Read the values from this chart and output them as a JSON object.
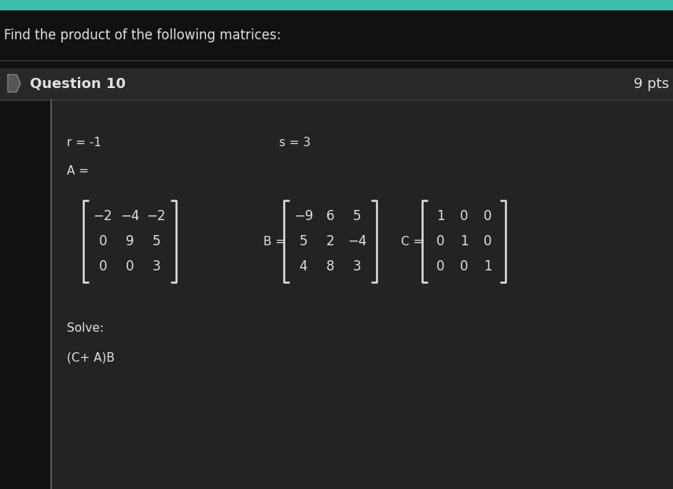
{
  "bg_color": "#111111",
  "top_bar_color": "#3dbfad",
  "header_bg": "#111111",
  "question_bar_bg": "#282828",
  "content_bg": "#1e1e1e",
  "content_inner_bg": "#232323",
  "text_color": "#e0e0e0",
  "title_text": "Find the product of the following matrices:",
  "question_label": "Question 10",
  "pts_label": "9 pts",
  "r_label": "r = -1",
  "s_label": "s = 3",
  "A_label": "A =",
  "B_label": "B =",
  "C_label": "C =",
  "solve_label": "Solve:",
  "expression_label": "(C+ A)B",
  "A_matrix": [
    [
      "−2",
      "−4",
      "−2"
    ],
    [
      "0",
      "9",
      "5"
    ],
    [
      "0",
      "0",
      "3"
    ]
  ],
  "B_matrix": [
    [
      "−9",
      "6",
      "5"
    ],
    [
      "5",
      "2",
      "−4"
    ],
    [
      "4",
      "8",
      "3"
    ]
  ],
  "C_matrix": [
    [
      "1",
      "0",
      "0"
    ],
    [
      "0",
      "1",
      "0"
    ],
    [
      "0",
      "0",
      "1"
    ]
  ],
  "font_size_title": 12,
  "font_size_question": 13,
  "font_size_content": 11,
  "font_size_matrix": 12
}
